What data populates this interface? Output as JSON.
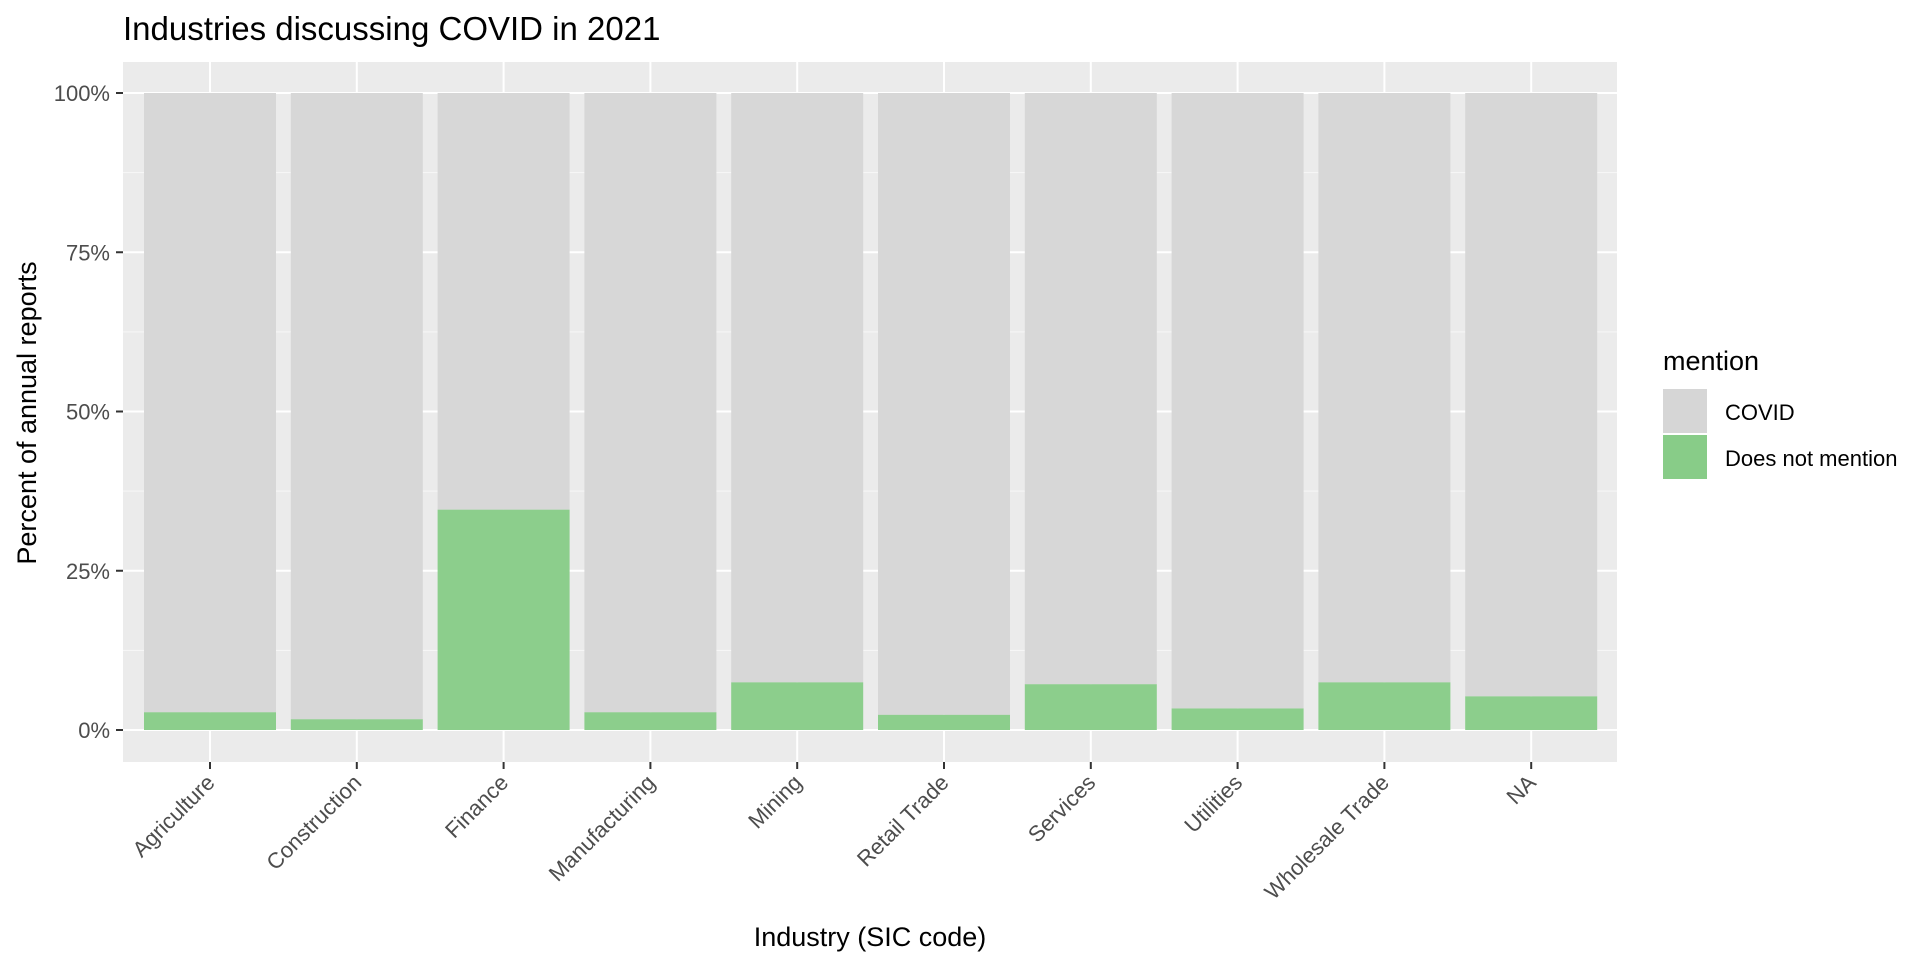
{
  "chart_data": {
    "type": "bar",
    "stacked": true,
    "title": "Industries discussing COVID in 2021",
    "xlabel": "Industry (SIC code)",
    "ylabel": "Percent of annual reports",
    "ylim": [
      0,
      1
    ],
    "yticks": [
      {
        "value": 0,
        "label": "0%"
      },
      {
        "value": 0.25,
        "label": "25%"
      },
      {
        "value": 0.5,
        "label": "50%"
      },
      {
        "value": 0.75,
        "label": "75%"
      },
      {
        "value": 1,
        "label": "100%"
      }
    ],
    "grid": true,
    "legend_position": "right",
    "legend_title": "mention",
    "categories": [
      "Agriculture",
      "Construction",
      "Finance",
      "Manufacturing",
      "Mining",
      "Retail Trade",
      "Services",
      "Utilities",
      "Wholesale Trade",
      "NA"
    ],
    "series": [
      {
        "name": "COVID",
        "color": "#d6d6d6",
        "values": [
          0.972,
          0.983,
          0.654,
          0.972,
          0.925,
          0.976,
          0.928,
          0.966,
          0.925,
          0.947
        ]
      },
      {
        "name": "Does not mention",
        "color": "#88cc88",
        "values": [
          0.028,
          0.017,
          0.346,
          0.028,
          0.075,
          0.024,
          0.072,
          0.034,
          0.075,
          0.053
        ]
      }
    ]
  },
  "colors": {
    "panel_background": "#ebebeb",
    "grid_major": "#ffffff",
    "tick_text": "#4d4d4d"
  }
}
